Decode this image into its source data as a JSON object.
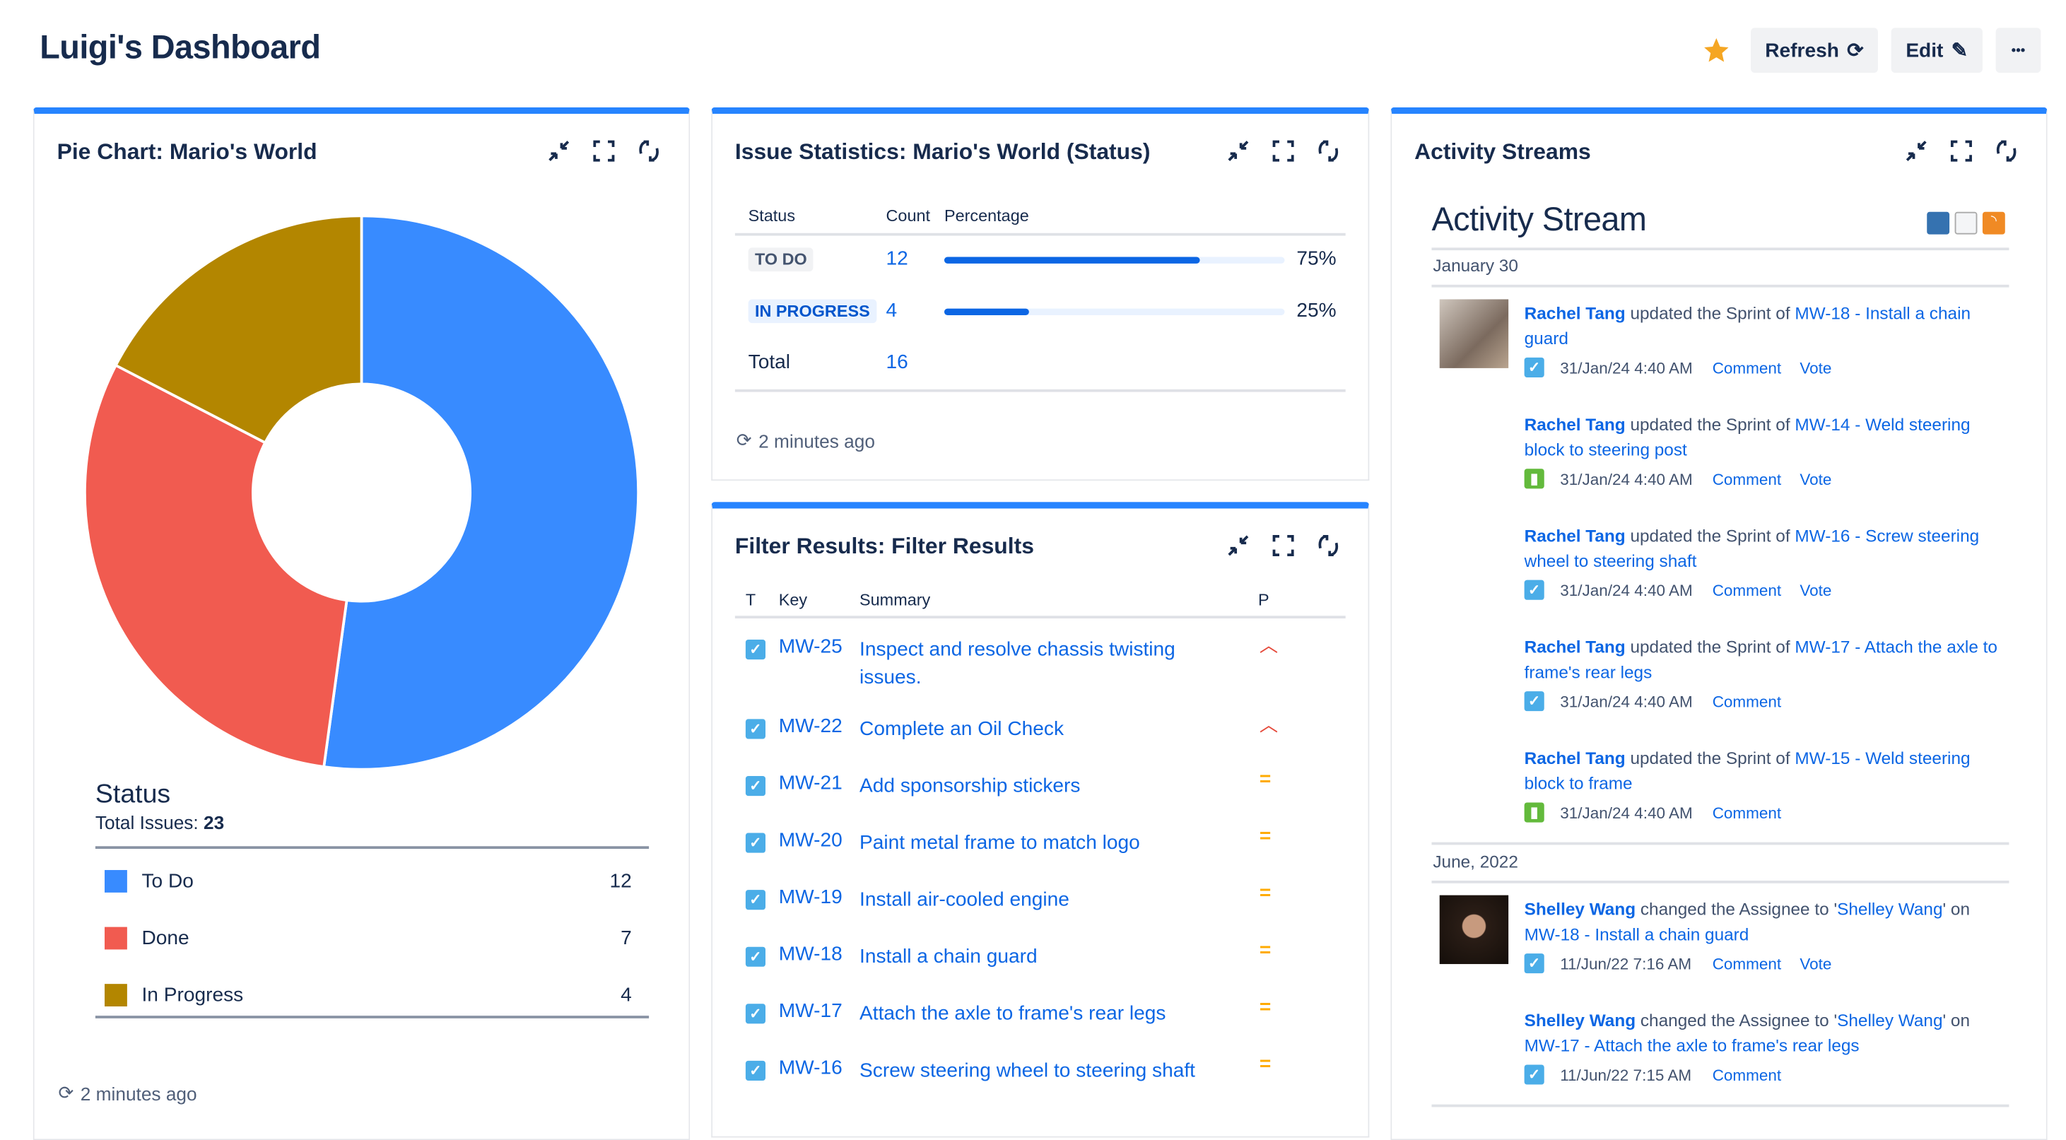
{
  "page_title": "Luigi's Dashboard",
  "toolbar": {
    "star_icon": "star-icon",
    "refresh_label": "Refresh",
    "edit_label": "Edit",
    "more_label": "•••"
  },
  "accent_color": "#2684ff",
  "pie_panel": {
    "title": "Pie Chart: Mario's World",
    "legend_title": "Status",
    "total_label": "Total Issues:",
    "total_value": "23",
    "footer": "2 minutes ago",
    "chart_data": {
      "type": "pie",
      "donut": true,
      "categories": [
        "To Do",
        "Done",
        "In Progress"
      ],
      "values": [
        12,
        7,
        4
      ],
      "colors": [
        "#388bff",
        "#f15b50",
        "#b38600"
      ]
    }
  },
  "stats_panel": {
    "title": "Issue Statistics: Mario's World (Status)",
    "headers": [
      "Status",
      "Count",
      "Percentage"
    ],
    "rows": [
      {
        "status": "TO DO",
        "count": "12",
        "percent": "75%",
        "fraction": 0.75
      },
      {
        "status": "IN PROGRESS",
        "count": "4",
        "percent": "25%",
        "fraction": 0.25
      }
    ],
    "total_label": "Total",
    "total_value": "16",
    "footer": "2 minutes ago"
  },
  "filter_panel": {
    "title": "Filter Results: Filter Results",
    "headers": [
      "T",
      "Key",
      "Summary",
      "P"
    ],
    "rows": [
      {
        "key": "MW-25",
        "summary": "Inspect and resolve chassis twisting issues.",
        "priority": "high"
      },
      {
        "key": "MW-22",
        "summary": "Complete an Oil Check",
        "priority": "high"
      },
      {
        "key": "MW-21",
        "summary": "Add sponsorship stickers",
        "priority": "medium"
      },
      {
        "key": "MW-20",
        "summary": "Paint metal frame to match logo",
        "priority": "medium"
      },
      {
        "key": "MW-19",
        "summary": "Install air-cooled engine",
        "priority": "medium"
      },
      {
        "key": "MW-18",
        "summary": "Install a chain guard",
        "priority": "medium"
      },
      {
        "key": "MW-17",
        "summary": "Attach the axle to frame's rear legs",
        "priority": "medium"
      },
      {
        "key": "MW-16",
        "summary": "Screw steering wheel to steering shaft",
        "priority": "medium"
      }
    ]
  },
  "activity_panel": {
    "title": "Activity Streams",
    "heading": "Activity Stream",
    "groups": [
      {
        "date": "January 30",
        "items": [
          {
            "user": "Rachel Tang",
            "action": " updated the Sprint of ",
            "target": "MW-18 - Install a chain guard",
            "time": "31/Jan/24 4:40 AM",
            "type": "task",
            "links": [
              "Comment",
              "Vote"
            ]
          },
          {
            "user": "Rachel Tang",
            "action": " updated the Sprint of ",
            "target": "MW-14 - Weld steering block to steering post",
            "time": "31/Jan/24 4:40 AM",
            "type": "story",
            "links": [
              "Comment",
              "Vote"
            ]
          },
          {
            "user": "Rachel Tang",
            "action": " updated the Sprint of ",
            "target": "MW-16 - Screw steering wheel to steering shaft",
            "time": "31/Jan/24 4:40 AM",
            "type": "task",
            "links": [
              "Comment",
              "Vote"
            ]
          },
          {
            "user": "Rachel Tang",
            "action": " updated the Sprint of ",
            "target": "MW-17 - Attach the axle to frame's rear legs",
            "time": "31/Jan/24 4:40 AM",
            "type": "task",
            "links": [
              "Comment"
            ]
          },
          {
            "user": "Rachel Tang",
            "action": " updated the Sprint of ",
            "target": "MW-15 - Weld steering block to frame",
            "time": "31/Jan/24 4:40 AM",
            "type": "story",
            "links": [
              "Comment"
            ]
          }
        ]
      },
      {
        "date": "June, 2022",
        "items": [
          {
            "user": "Shelley Wang",
            "action": " changed the Assignee to '",
            "assignee": "Shelley Wang",
            "action2": "' on ",
            "target": "MW-18 - Install a chain guard",
            "time": "11/Jun/22 7:16 AM",
            "type": "task",
            "links": [
              "Comment",
              "Vote"
            ]
          },
          {
            "user": "Shelley Wang",
            "action": " changed the Assignee to '",
            "assignee": "Shelley Wang",
            "action2": "' on ",
            "target": "MW-17 - Attach the axle to frame's rear legs",
            "time": "11/Jun/22 7:15 AM",
            "type": "task",
            "links": [
              "Comment"
            ]
          }
        ]
      }
    ]
  }
}
